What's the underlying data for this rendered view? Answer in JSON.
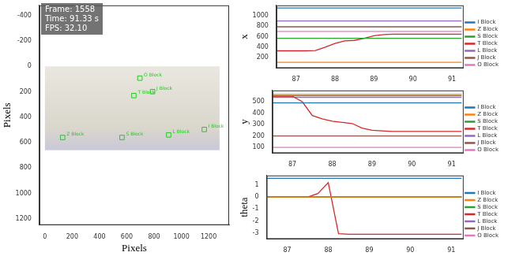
{
  "chart_data": [
    {
      "type": "scatter",
      "xlabel": "Pixels",
      "ylabel": "Pixels",
      "annotations": [
        "Frame: 1558",
        "Time: 91.33 s",
        "FPS: 32.10"
      ],
      "xlim": [
        -40,
        1350
      ],
      "xticks": [
        0,
        200,
        400,
        600,
        800,
        1000,
        1200
      ],
      "ylim": [
        1250,
        -480
      ],
      "yticks": [
        -400,
        -200,
        0,
        200,
        400,
        600,
        800,
        1000,
        1200
      ],
      "image": {
        "x": [
          0,
          1280
        ],
        "y": [
          0,
          660
        ]
      },
      "points": [
        {
          "label": "O Block",
          "x": 696,
          "y": 93
        },
        {
          "label": "T Block",
          "x": 652,
          "y": 230
        },
        {
          "label": "J Block",
          "x": 789,
          "y": 199
        },
        {
          "label": "Z Block",
          "x": 130,
          "y": 560
        },
        {
          "label": "S Block",
          "x": 565,
          "y": 560
        },
        {
          "label": "L Block",
          "x": 907,
          "y": 540
        },
        {
          "label": "I Block",
          "x": 1168,
          "y": 497
        }
      ],
      "color": "#22cc22",
      "marker": "square",
      "data_labels": true,
      "grid": false
    },
    {
      "type": "line",
      "ylabel": "x",
      "x": [
        86.5,
        86.75,
        87,
        87.25,
        87.5,
        87.75,
        88,
        88.25,
        88.5,
        88.75,
        89,
        89.25,
        89.5,
        89.75,
        90,
        90.25,
        90.5,
        90.75,
        91,
        91.25
      ],
      "xlim": [
        86.5,
        91.3
      ],
      "xticks": [
        87,
        88,
        89,
        90,
        91
      ],
      "ylim": [
        0,
        1200
      ],
      "yticks": [
        200,
        400,
        600,
        800,
        1000
      ],
      "legend": "right",
      "grid": false,
      "series": [
        {
          "name": "I Block",
          "color": "#1f77b4",
          "values": [
            1150,
            1150,
            1150,
            1150,
            1150,
            1150,
            1150,
            1150,
            1150,
            1150,
            1150,
            1150,
            1150,
            1150,
            1150,
            1150,
            1150,
            1150,
            1150,
            1150
          ]
        },
        {
          "name": "Z Block",
          "color": "#ff7f0e",
          "values": [
            110,
            110,
            110,
            110,
            110,
            110,
            110,
            110,
            110,
            110,
            110,
            110,
            110,
            110,
            110,
            110,
            110,
            110,
            110,
            110
          ]
        },
        {
          "name": "S Block",
          "color": "#2ca02c",
          "values": [
            570,
            570,
            570,
            570,
            570,
            570,
            570,
            570,
            570,
            570,
            570,
            570,
            570,
            570,
            570,
            570,
            570,
            570,
            570,
            570
          ]
        },
        {
          "name": "T Block",
          "color": "#d62728",
          "values": [
            330,
            330,
            330,
            330,
            335,
            400,
            470,
            520,
            530,
            570,
            620,
            640,
            650,
            650,
            650,
            650,
            650,
            650,
            650,
            650
          ]
        },
        {
          "name": "L Block",
          "color": "#9467bd",
          "values": [
            900,
            900,
            900,
            900,
            900,
            900,
            900,
            900,
            900,
            900,
            900,
            900,
            900,
            900,
            900,
            900,
            900,
            900,
            900,
            900
          ]
        },
        {
          "name": "J Block",
          "color": "#8c564b",
          "values": [
            790,
            790,
            790,
            790,
            790,
            790,
            790,
            790,
            790,
            790,
            790,
            790,
            790,
            790,
            790,
            790,
            790,
            790,
            790,
            790
          ]
        },
        {
          "name": "O Block",
          "color": "#e377c2",
          "values": [
            700,
            700,
            700,
            700,
            700,
            700,
            700,
            700,
            700,
            700,
            700,
            700,
            700,
            700,
            700,
            700,
            700,
            700,
            700,
            700
          ]
        }
      ]
    },
    {
      "type": "line",
      "ylabel": "y",
      "x": [
        86.5,
        86.75,
        87,
        87.25,
        87.5,
        87.75,
        88,
        88.25,
        88.5,
        88.75,
        89,
        89.25,
        89.5,
        89.75,
        90,
        90.25,
        90.5,
        90.75,
        91,
        91.25
      ],
      "xlim": [
        86.5,
        91.3
      ],
      "xticks": [
        87,
        88,
        89,
        90,
        91
      ],
      "ylim": [
        50,
        600
      ],
      "yticks": [
        100,
        200,
        300,
        400,
        500
      ],
      "legend": "right",
      "grid": false,
      "series": [
        {
          "name": "I Block",
          "color": "#1f77b4",
          "values": [
            490,
            490,
            490,
            490,
            490,
            490,
            490,
            490,
            490,
            490,
            490,
            490,
            490,
            490,
            490,
            490,
            490,
            490,
            490,
            490
          ]
        },
        {
          "name": "Z Block",
          "color": "#ff7f0e",
          "values": [
            565,
            565,
            565,
            565,
            565,
            565,
            565,
            565,
            565,
            565,
            565,
            565,
            565,
            565,
            565,
            565,
            565,
            565,
            565,
            565
          ]
        },
        {
          "name": "S Block",
          "color": "#2ca02c",
          "values": [
            555,
            555,
            555,
            555,
            555,
            555,
            555,
            555,
            555,
            555,
            555,
            555,
            555,
            555,
            555,
            555,
            555,
            555,
            555,
            555
          ]
        },
        {
          "name": "T Block",
          "color": "#d62728",
          "values": [
            550,
            550,
            550,
            500,
            380,
            350,
            330,
            320,
            310,
            270,
            250,
            245,
            240,
            240,
            240,
            240,
            240,
            240,
            240,
            240
          ]
        },
        {
          "name": "L Block",
          "color": "#9467bd",
          "values": [
            540,
            540,
            540,
            540,
            540,
            540,
            540,
            540,
            540,
            540,
            540,
            540,
            540,
            540,
            540,
            540,
            540,
            540,
            540,
            540
          ]
        },
        {
          "name": "J Block",
          "color": "#8c564b",
          "values": [
            200,
            200,
            200,
            200,
            200,
            200,
            200,
            200,
            200,
            200,
            200,
            200,
            200,
            200,
            200,
            200,
            200,
            200,
            200,
            200
          ]
        },
        {
          "name": "O Block",
          "color": "#e377c2",
          "values": [
            100,
            100,
            100,
            100,
            100,
            100,
            100,
            100,
            100,
            100,
            100,
            100,
            100,
            100,
            100,
            100,
            100,
            100,
            100,
            100
          ]
        }
      ]
    },
    {
      "type": "line",
      "ylabel": "theta",
      "x": [
        86.5,
        86.75,
        87,
        87.25,
        87.5,
        87.75,
        88,
        88.25,
        88.5,
        88.75,
        89,
        89.25,
        89.5,
        89.75,
        90,
        90.25,
        90.5,
        90.75,
        91,
        91.25
      ],
      "xlim": [
        86.5,
        91.3
      ],
      "xticks": [
        87,
        88,
        89,
        90,
        91
      ],
      "ylim": [
        -3.5,
        1.8
      ],
      "yticks": [
        -3,
        -2,
        -1,
        0,
        1
      ],
      "legend": "right",
      "grid": false,
      "series": [
        {
          "name": "I Block",
          "color": "#1f77b4",
          "values": [
            1.57,
            1.57,
            1.57,
            1.57,
            1.57,
            1.57,
            1.57,
            1.57,
            1.57,
            1.57,
            1.57,
            1.57,
            1.57,
            1.57,
            1.57,
            1.57,
            1.57,
            1.57,
            1.57,
            1.57
          ]
        },
        {
          "name": "Z Block",
          "color": "#ff7f0e",
          "values": [
            0,
            0,
            0,
            0,
            0,
            0,
            0,
            0,
            0,
            0,
            0,
            0,
            0,
            0,
            0,
            0,
            0,
            0,
            0,
            0
          ]
        },
        {
          "name": "S Block",
          "color": "#2ca02c",
          "values": [
            0,
            0,
            0,
            0,
            0,
            0,
            0,
            0,
            0,
            0,
            0,
            0,
            0,
            0,
            0,
            0,
            0,
            0,
            0,
            0
          ]
        },
        {
          "name": "T Block",
          "color": "#d62728",
          "values": [
            0,
            0,
            0,
            0,
            0,
            0.3,
            1.2,
            -3.05,
            -3.1,
            -3.1,
            -3.1,
            -3.1,
            -3.1,
            -3.1,
            -3.1,
            -3.1,
            -3.1,
            -3.1,
            -3.1,
            -3.1
          ]
        },
        {
          "name": "L Block",
          "color": "#9467bd",
          "values": [
            0,
            0,
            0,
            0,
            0,
            0,
            0,
            0,
            0,
            0,
            0,
            0,
            0,
            0,
            0,
            0,
            0,
            0,
            0,
            0
          ]
        },
        {
          "name": "J Block",
          "color": "#8c564b",
          "values": [
            0,
            0,
            0,
            0,
            0,
            0,
            0,
            0,
            0,
            0,
            0,
            0,
            0,
            0,
            0,
            0,
            0,
            0,
            0,
            0
          ]
        },
        {
          "name": "O Block",
          "color": "#e377c2",
          "values": [
            0,
            0,
            0,
            0,
            0,
            0,
            0,
            0,
            0,
            0,
            0,
            0,
            0,
            0,
            0,
            0,
            0,
            0,
            0,
            0
          ]
        }
      ]
    }
  ]
}
